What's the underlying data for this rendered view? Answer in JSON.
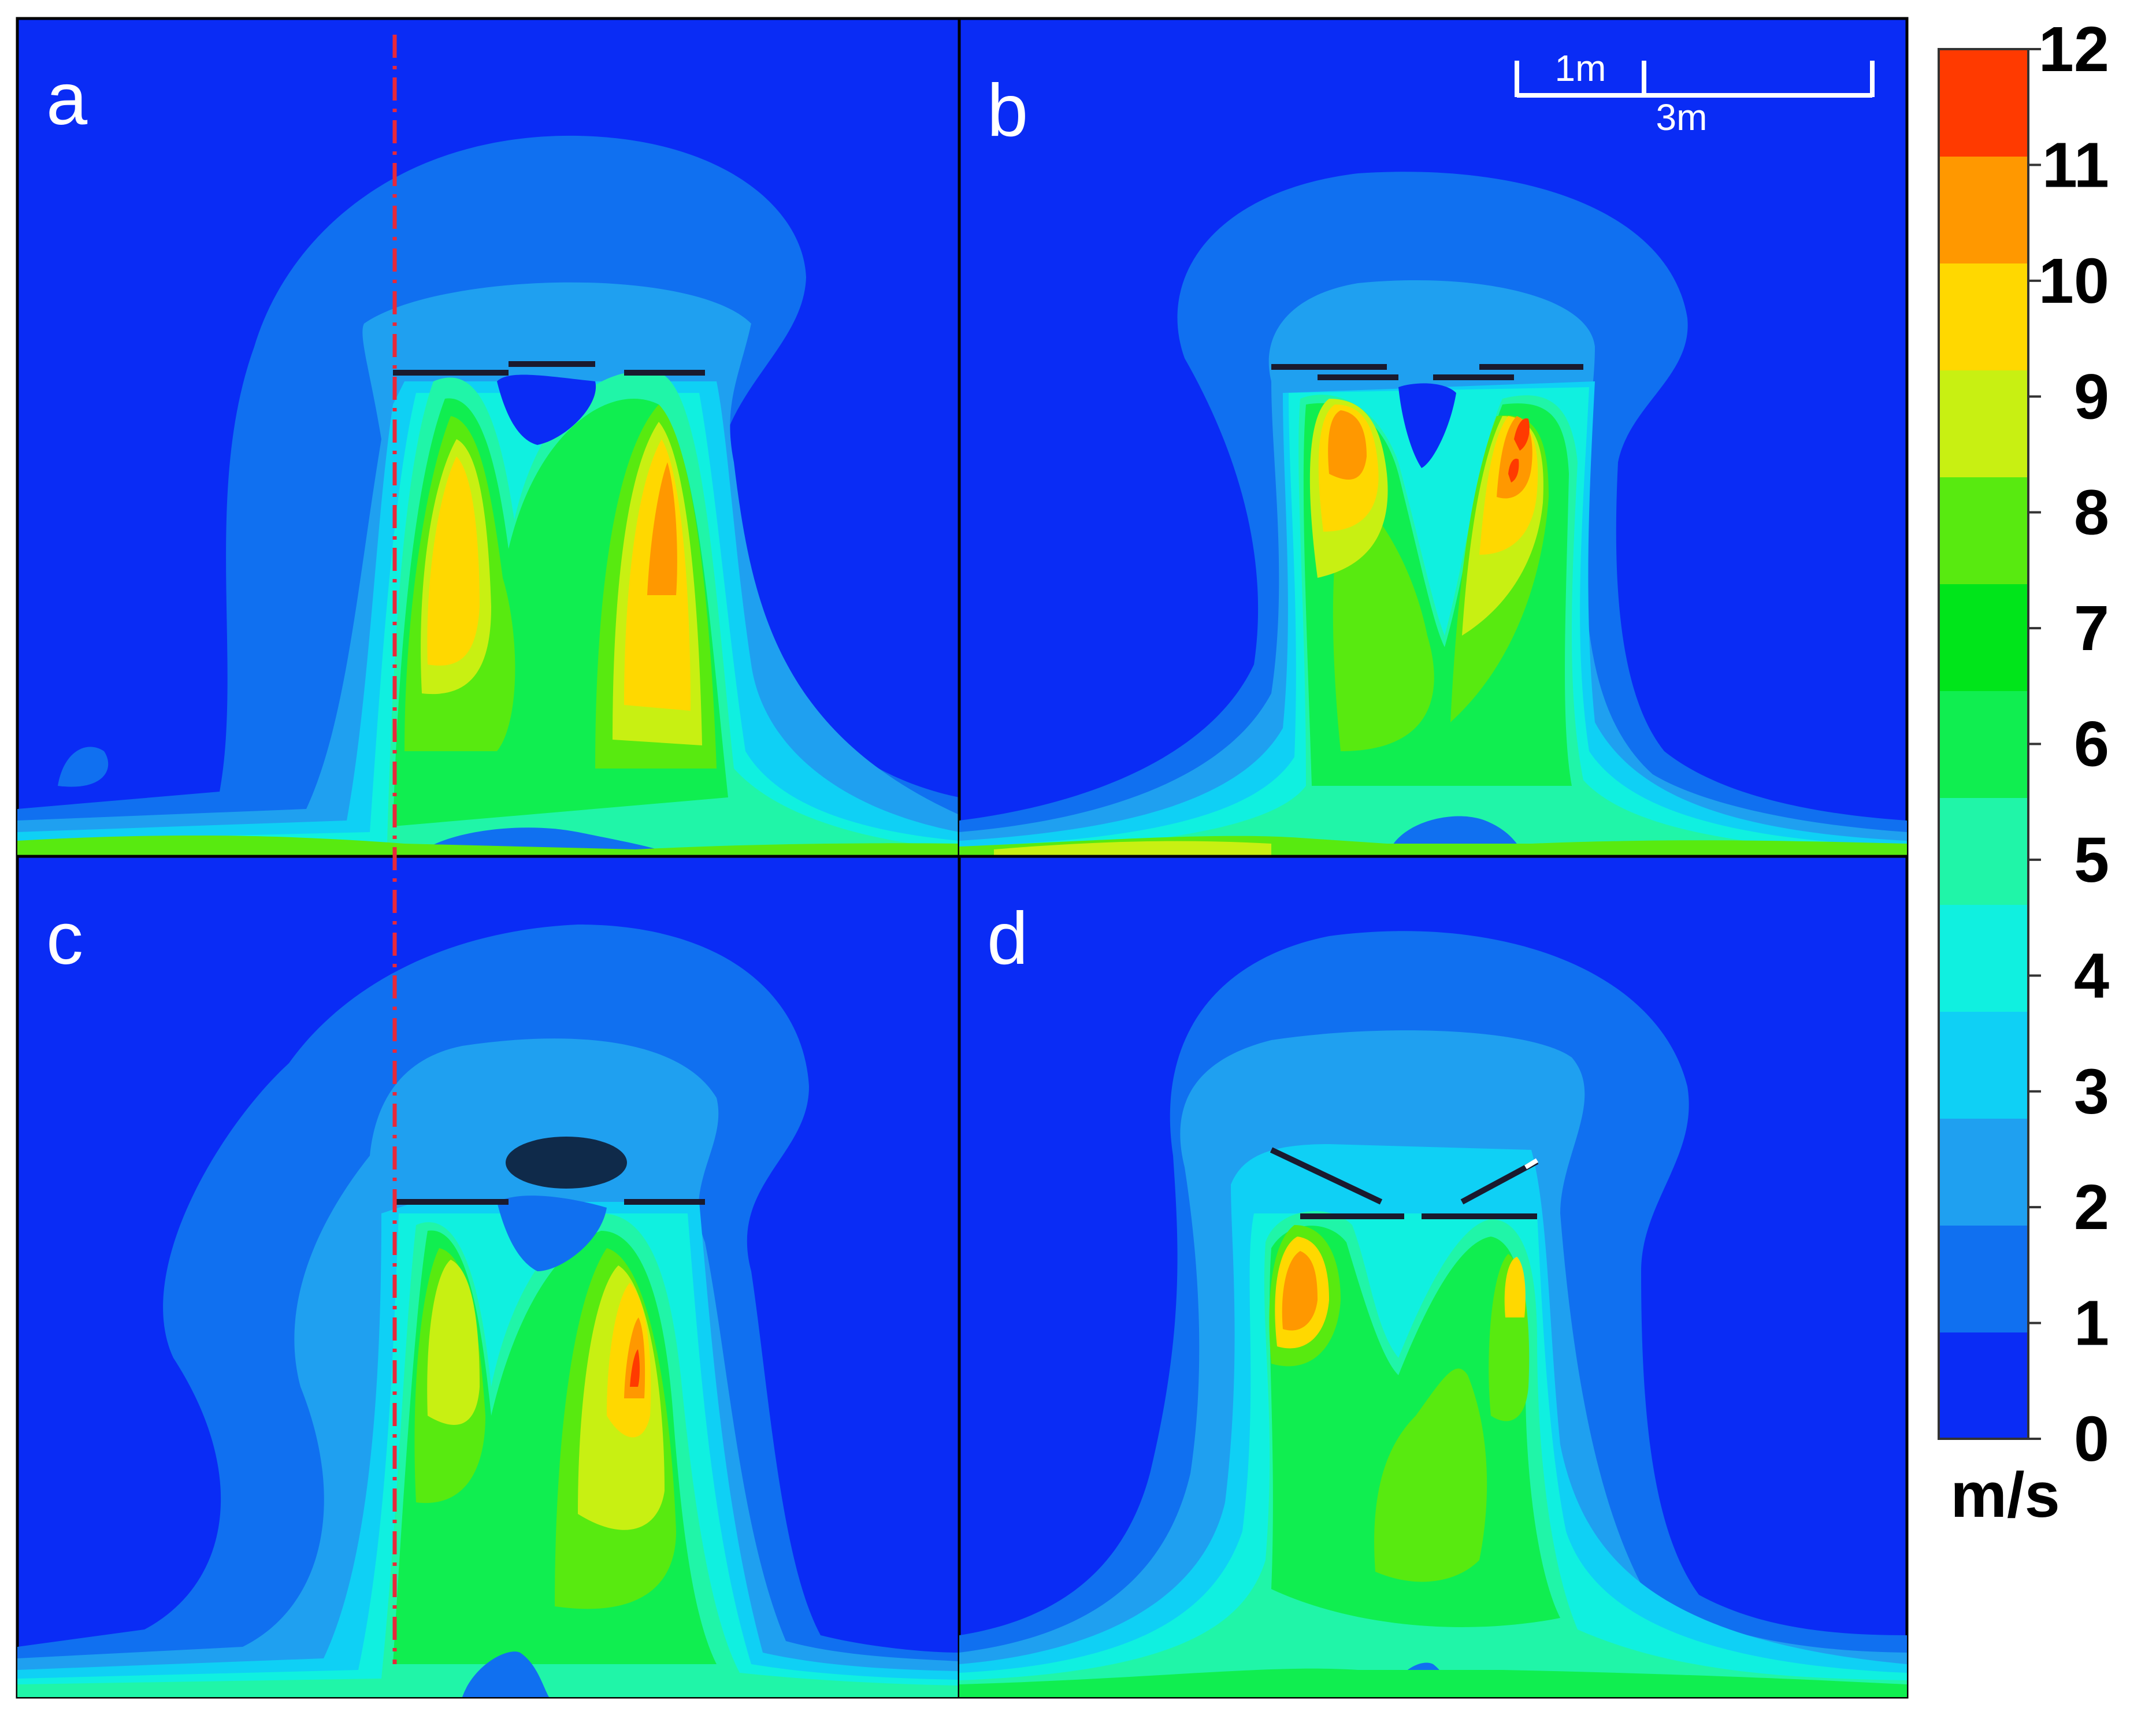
{
  "panels": [
    {
      "label": "a"
    },
    {
      "label": "b"
    },
    {
      "label": "c"
    },
    {
      "label": "d"
    }
  ],
  "scale_bar": {
    "short_label": "1m",
    "long_label": "3m"
  },
  "colorbar": {
    "unit": "m/s",
    "ticks": [
      "0",
      "1",
      "2",
      "3",
      "4",
      "5",
      "6",
      "7",
      "8",
      "9",
      "10",
      "11",
      "12"
    ],
    "colors": [
      "#0a2cf5",
      "#1070f0",
      "#1fa0f0",
      "#0fd0f5",
      "#10f0e0",
      "#20f5a8",
      "#10ee50",
      "#00e51a",
      "#58ea10",
      "#c8f012",
      "#ffd800",
      "#ff9800",
      "#ff3a00"
    ]
  },
  "dash_line_color": "#e8283a"
}
